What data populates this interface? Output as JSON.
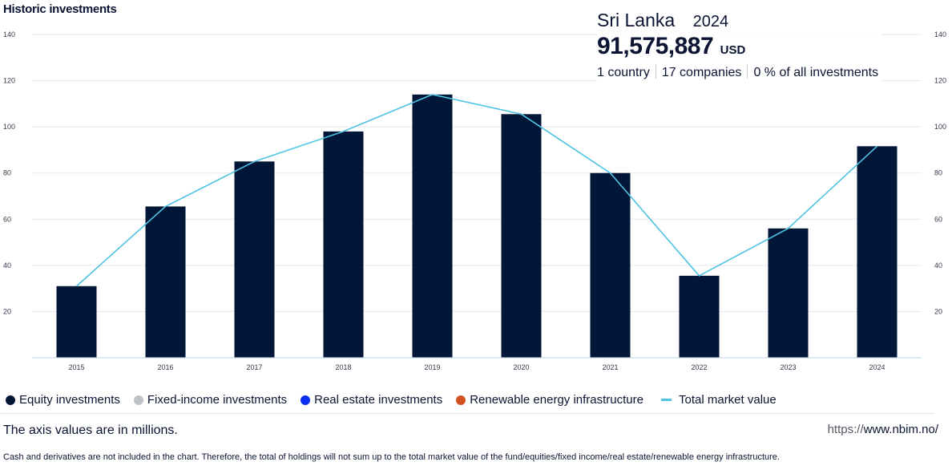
{
  "title": "Historic investments",
  "info": {
    "country": "Sri Lanka",
    "year": "2024",
    "value": "91,575,887",
    "currency": "USD",
    "countries": "1 country",
    "companies": "17 companies",
    "share": "0 % of all investments"
  },
  "legend": [
    {
      "label": "Equity investments",
      "color": "#021638",
      "shape": "dot"
    },
    {
      "label": "Fixed-income investments",
      "color": "#bfc1c8",
      "shape": "dot"
    },
    {
      "label": "Real estate investments",
      "color": "#0a2ff5",
      "shape": "dot"
    },
    {
      "label": "Renewable energy infrastructure",
      "color": "#d2531f",
      "shape": "dot"
    },
    {
      "label": "Total market value",
      "color": "#4fc3e3",
      "shape": "line"
    }
  ],
  "axis_note": "The axis values are in millions.",
  "source": {
    "scheme": "https://",
    "host": "www.nbim.no/"
  },
  "footnote": "Cash and derivatives are not included in the chart. Therefore, the total of holdings will not sum up to the total market value of the fund/equities/fixed income/real estate/renewable energy infrastructure.",
  "chart_data": {
    "type": "bar",
    "title": "Historic investments",
    "categories": [
      "2015",
      "2016",
      "2017",
      "2018",
      "2019",
      "2020",
      "2021",
      "2022",
      "2023",
      "2024"
    ],
    "series": [
      {
        "name": "Equity investments",
        "type": "bar",
        "color": "#021638",
        "values": [
          31,
          65.5,
          85,
          98,
          114,
          105.5,
          80,
          35.5,
          56,
          91.6
        ]
      },
      {
        "name": "Total market value",
        "type": "line",
        "color": "#4fc3e3",
        "values": [
          31,
          65.5,
          85,
          98,
          114,
          105.5,
          80,
          35.5,
          56,
          91.6
        ]
      }
    ],
    "ylim": [
      0,
      140
    ],
    "yticks": [
      20,
      40,
      60,
      80,
      100,
      120,
      140
    ],
    "y_axis_sides": "left and right",
    "grid": true,
    "legend_position": "bottom",
    "xlabel": "",
    "ylabel": ""
  }
}
